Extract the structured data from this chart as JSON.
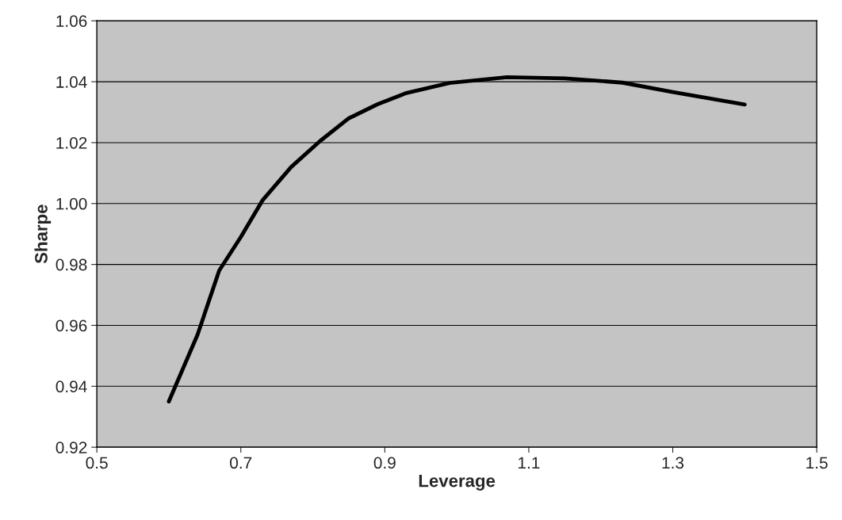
{
  "chart_data": {
    "type": "line",
    "xlabel": "Leverage",
    "ylabel": "Sharpe",
    "x": [
      0.6,
      0.64,
      0.67,
      0.7,
      0.73,
      0.77,
      0.81,
      0.85,
      0.89,
      0.93,
      0.99,
      1.07,
      1.15,
      1.23,
      1.3,
      1.4
    ],
    "series": [
      {
        "color": "#000000",
        "values": [
          0.935,
          0.957,
          0.978,
          0.989,
          1.001,
          1.012,
          1.0205,
          1.028,
          1.0326,
          1.0363,
          1.0396,
          1.0415,
          1.0411,
          1.0397,
          1.0366,
          1.0325
        ]
      }
    ],
    "xlim": [
      0.5,
      1.5
    ],
    "xticks": [
      0.5,
      0.7,
      0.9,
      1.1,
      1.3,
      1.5
    ],
    "ylim": [
      0.92,
      1.06
    ],
    "yticks": [
      {
        "value": 0.92,
        "label": "0.92"
      },
      {
        "value": 0.94,
        "label": "0.94"
      },
      {
        "value": 0.96,
        "label": "0.96"
      },
      {
        "value": 0.98,
        "label": "0.98"
      },
      {
        "value": 1.0,
        "label": "1.00"
      },
      {
        "value": 1.02,
        "label": "1.02"
      },
      {
        "value": 1.04,
        "label": "1.04"
      },
      {
        "value": 1.06,
        "label": "1.06"
      }
    ],
    "grid": "y",
    "marker": "none",
    "line_style": "solid"
  }
}
